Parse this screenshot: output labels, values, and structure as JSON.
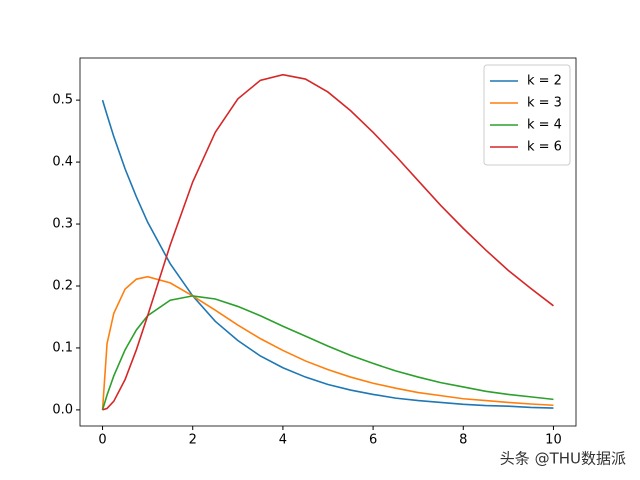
{
  "chart_data": {
    "type": "line",
    "x": [
      0,
      0.1,
      0.25,
      0.5,
      0.75,
      1,
      1.5,
      2,
      2.5,
      3,
      3.5,
      4,
      4.5,
      5,
      5.5,
      6,
      6.5,
      7,
      7.5,
      8,
      8.5,
      9,
      9.5,
      10
    ],
    "series": [
      {
        "name": "k = 2",
        "color": "#1f77b4",
        "values": [
          0.5,
          0.476,
          0.441,
          0.389,
          0.344,
          0.303,
          0.236,
          0.184,
          0.143,
          0.112,
          0.087,
          0.068,
          0.053,
          0.041,
          0.032,
          0.025,
          0.019,
          0.015,
          0.012,
          0.009,
          0.007,
          0.006,
          0.004,
          0.003
        ]
      },
      {
        "name": "k = 3",
        "color": "#ff7f0e",
        "values": [
          0,
          0.107,
          0.156,
          0.195,
          0.211,
          0.215,
          0.205,
          0.184,
          0.161,
          0.137,
          0.115,
          0.096,
          0.079,
          0.065,
          0.053,
          0.043,
          0.035,
          0.028,
          0.023,
          0.018,
          0.015,
          0.012,
          0.0095,
          0.0075
        ]
      },
      {
        "name": "k = 4",
        "color": "#2ca02c",
        "values": [
          0,
          0.024,
          0.055,
          0.097,
          0.129,
          0.152,
          0.177,
          0.184,
          0.179,
          0.167,
          0.152,
          0.135,
          0.119,
          0.103,
          0.088,
          0.075,
          0.063,
          0.053,
          0.044,
          0.037,
          0.03,
          0.025,
          0.021,
          0.017
        ]
      },
      {
        "name": "k = 6",
        "color": "#d62728",
        "values": [
          0,
          0.0024,
          0.014,
          0.049,
          0.097,
          0.152,
          0.266,
          0.368,
          0.448,
          0.502,
          0.532,
          0.541,
          0.534,
          0.513,
          0.483,
          0.448,
          0.41,
          0.37,
          0.33,
          0.293,
          0.258,
          0.225,
          0.196,
          0.168
        ]
      }
    ],
    "xlim": [
      -0.5,
      10.5
    ],
    "ylim": [
      -0.026,
      0.568
    ],
    "xticks": [
      0,
      2,
      4,
      6,
      8,
      10
    ],
    "yticks": [
      {
        "value": 0,
        "label": "0.0"
      },
      0.1,
      0.2,
      0.3,
      0.4,
      0.5
    ],
    "legend": "upper right",
    "watermark": "头条 @THU数据派"
  }
}
